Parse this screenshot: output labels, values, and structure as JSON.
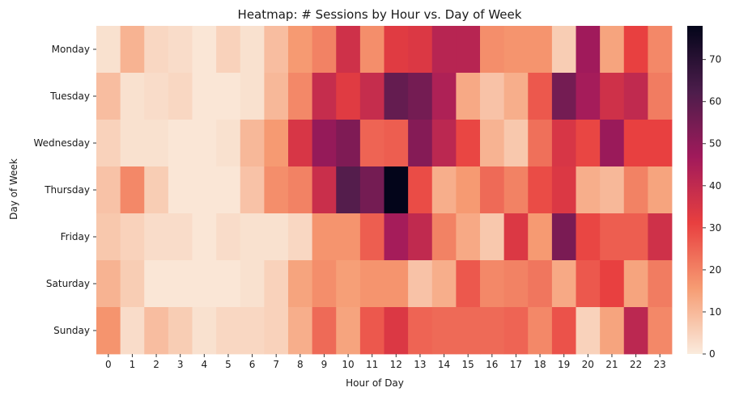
{
  "chart_data": {
    "type": "heatmap",
    "title": "Heatmap: # Sessions by Hour vs. Day of Week",
    "xlabel": "Hour of Day",
    "ylabel": "Day of Week",
    "x": [
      "0",
      "1",
      "2",
      "3",
      "4",
      "5",
      "6",
      "7",
      "8",
      "9",
      "10",
      "11",
      "12",
      "13",
      "14",
      "15",
      "16",
      "17",
      "18",
      "19",
      "20",
      "21",
      "22",
      "23"
    ],
    "y": [
      "Monday",
      "Tuesday",
      "Wednesday",
      "Thursday",
      "Friday",
      "Saturday",
      "Sunday"
    ],
    "values": [
      [
        2,
        11,
        4,
        3,
        1,
        5,
        2,
        9,
        16,
        20,
        37,
        18,
        33,
        34,
        42,
        42,
        18,
        17,
        17,
        6,
        47,
        14,
        31,
        19
      ],
      [
        9,
        2,
        3,
        4,
        1,
        1,
        2,
        10,
        19,
        39,
        33,
        39,
        58,
        55,
        44,
        13,
        8,
        12,
        27,
        55,
        46,
        37,
        40,
        21
      ],
      [
        5,
        2,
        2,
        1,
        1,
        2,
        10,
        16,
        35,
        49,
        53,
        25,
        26,
        52,
        41,
        30,
        11,
        7,
        23,
        35,
        30,
        48,
        31,
        31
      ],
      [
        8,
        19,
        6,
        1,
        1,
        1,
        8,
        18,
        20,
        38,
        61,
        55,
        78,
        29,
        12,
        16,
        24,
        20,
        29,
        34,
        12,
        10,
        20,
        14
      ],
      [
        7,
        5,
        3,
        3,
        1,
        3,
        2,
        2,
        4,
        17,
        17,
        26,
        46,
        40,
        20,
        13,
        7,
        34,
        16,
        54,
        30,
        26,
        26,
        37
      ],
      [
        11,
        6,
        1,
        1,
        1,
        1,
        2,
        5,
        14,
        18,
        15,
        17,
        17,
        8,
        12,
        27,
        19,
        20,
        22,
        13,
        27,
        31,
        14,
        21
      ],
      [
        17,
        3,
        9,
        6,
        2,
        4,
        4,
        5,
        12,
        24,
        14,
        27,
        34,
        25,
        24,
        24,
        24,
        25,
        19,
        28,
        5,
        14,
        41,
        19
      ]
    ],
    "colorbar": {
      "min": 0,
      "max": 78,
      "ticks": [
        0,
        10,
        20,
        30,
        40,
        50,
        60,
        70
      ]
    },
    "colormap": [
      "#faebdd",
      "#f69c73",
      "#e83f3f",
      "#a11a5b",
      "#4c1d4b",
      "#03051a"
    ]
  }
}
